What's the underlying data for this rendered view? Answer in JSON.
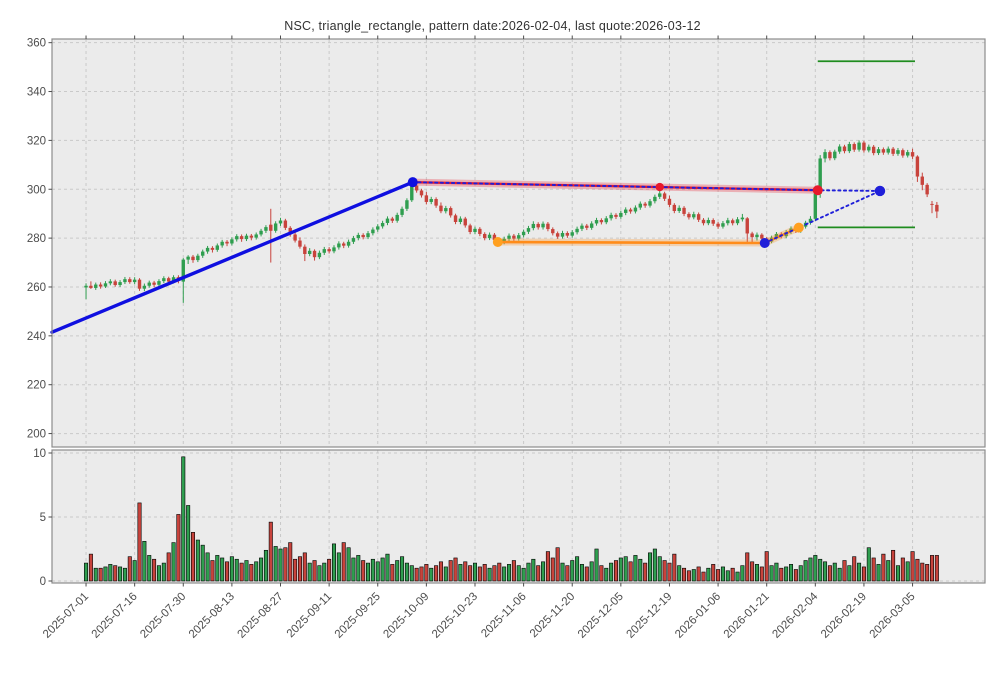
{
  "title": "NSC, triangle_rectangle, pattern date:2026-02-04, last quote:2026-03-12",
  "chart_data": {
    "type": "candlestick",
    "symbol": "NSC",
    "pattern": "triangle_rectangle",
    "pattern_date": "2026-02-04",
    "last_quote_date": "2026-03-12",
    "grid": true,
    "legend": "none",
    "x_tick_labels": [
      "2025-07-01",
      "2025-07-16",
      "2025-07-30",
      "2025-08-13",
      "2025-08-27",
      "2025-09-11",
      "2025-09-25",
      "2025-10-09",
      "2025-10-23",
      "2025-11-06",
      "2025-11-20",
      "2025-12-05",
      "2025-12-19",
      "2026-01-06",
      "2026-01-21",
      "2026-02-04",
      "2026-02-19",
      "2026-03-05"
    ],
    "x_tick_indices": [
      0,
      10,
      20,
      30,
      40,
      50,
      60,
      70,
      80,
      90,
      100,
      110,
      120,
      130,
      140,
      150,
      160,
      170
    ],
    "index_lim": [
      -7,
      184.9
    ],
    "price_axis": {
      "ticks": [
        200,
        220,
        240,
        260,
        280,
        300,
        320,
        340,
        360
      ],
      "lim": [
        194.5,
        361.5
      ]
    },
    "volume_axis": {
      "ticks": [
        0,
        5,
        10
      ],
      "lim": [
        0,
        10.4
      ]
    },
    "ohlc": [
      [
        259.8,
        261.5,
        255.0,
        260.5
      ],
      [
        260.5,
        262.3,
        259.2,
        259.6
      ],
      [
        259.6,
        261.8,
        258.8,
        261.0
      ],
      [
        261.0,
        261.9,
        259.3,
        260.2
      ],
      [
        260.2,
        262.4,
        259.6,
        261.5
      ],
      [
        261.5,
        263.2,
        260.7,
        262.3
      ],
      [
        262.3,
        263.0,
        260.1,
        260.8
      ],
      [
        260.8,
        262.8,
        260.0,
        262.0
      ],
      [
        262.0,
        264.1,
        261.2,
        263.2
      ],
      [
        263.2,
        264.0,
        261.3,
        262.0
      ],
      [
        262.0,
        264.0,
        261.1,
        263.0
      ],
      [
        263.0,
        263.6,
        258.4,
        259.3
      ],
      [
        259.3,
        261.4,
        258.3,
        260.5
      ],
      [
        260.5,
        262.6,
        259.7,
        261.8
      ],
      [
        261.8,
        262.5,
        259.9,
        260.9
      ],
      [
        260.9,
        263.2,
        260.1,
        262.4
      ],
      [
        262.4,
        264.4,
        261.6,
        263.6
      ],
      [
        263.6,
        264.2,
        261.3,
        262.2
      ],
      [
        262.2,
        264.8,
        261.4,
        264.0
      ],
      [
        264.0,
        264.8,
        261.5,
        262.5
      ],
      [
        262.2,
        271.8,
        253.5,
        271.2
      ],
      [
        271.2,
        273.0,
        269.4,
        272.4
      ],
      [
        272.4,
        273.1,
        269.9,
        271.0
      ],
      [
        271.0,
        273.6,
        270.2,
        272.8
      ],
      [
        272.8,
        275.3,
        271.9,
        274.5
      ],
      [
        274.5,
        276.8,
        273.6,
        276.0
      ],
      [
        276.0,
        276.7,
        274.1,
        275.2
      ],
      [
        275.2,
        277.8,
        274.4,
        277.0
      ],
      [
        277.0,
        279.3,
        276.1,
        278.5
      ],
      [
        278.5,
        279.2,
        276.7,
        277.8
      ],
      [
        277.8,
        280.3,
        277.0,
        279.5
      ],
      [
        279.5,
        281.6,
        278.6,
        280.8
      ],
      [
        280.8,
        281.5,
        278.5,
        279.6
      ],
      [
        279.6,
        281.8,
        278.8,
        281.0
      ],
      [
        281.0,
        281.7,
        279.1,
        280.2
      ],
      [
        280.2,
        282.3,
        279.4,
        281.5
      ],
      [
        281.5,
        283.8,
        280.7,
        283.0
      ],
      [
        283.0,
        285.3,
        282.1,
        284.5
      ],
      [
        285.5,
        292.0,
        270.0,
        283.0
      ],
      [
        283.0,
        286.9,
        282.2,
        286.0
      ],
      [
        286.0,
        288.3,
        285.0,
        287.2
      ],
      [
        287.2,
        287.9,
        283.3,
        284.2
      ],
      [
        284.2,
        284.9,
        280.6,
        281.5
      ],
      [
        281.5,
        282.8,
        278.2,
        279.0
      ],
      [
        279.0,
        280.3,
        275.7,
        276.5
      ],
      [
        276.5,
        277.4,
        270.6,
        273.5
      ],
      [
        273.5,
        275.9,
        272.6,
        274.8
      ],
      [
        274.8,
        275.4,
        270.8,
        272.2
      ],
      [
        272.2,
        274.9,
        271.4,
        274.0
      ],
      [
        274.0,
        276.4,
        273.1,
        275.5
      ],
      [
        275.5,
        276.3,
        273.7,
        274.6
      ],
      [
        274.6,
        277.1,
        273.8,
        276.2
      ],
      [
        276.2,
        278.7,
        275.3,
        277.8
      ],
      [
        277.8,
        278.5,
        275.9,
        276.9
      ],
      [
        276.9,
        279.4,
        276.1,
        278.5
      ],
      [
        278.5,
        280.9,
        277.6,
        280.0
      ],
      [
        280.0,
        282.2,
        279.1,
        281.3
      ],
      [
        281.3,
        282.0,
        279.5,
        280.4
      ],
      [
        280.4,
        282.9,
        279.6,
        282.0
      ],
      [
        282.0,
        284.4,
        281.1,
        283.5
      ],
      [
        283.5,
        285.7,
        282.6,
        284.8
      ],
      [
        284.8,
        287.1,
        283.9,
        286.2
      ],
      [
        286.2,
        288.9,
        285.3,
        288.0
      ],
      [
        288.0,
        288.7,
        286.2,
        287.1
      ],
      [
        287.1,
        290.4,
        286.3,
        289.5
      ],
      [
        289.5,
        292.9,
        288.6,
        292.0
      ],
      [
        292.0,
        296.3,
        291.1,
        295.5
      ],
      [
        295.5,
        303.0,
        294.8,
        301.5
      ],
      [
        301.5,
        302.8,
        298.6,
        299.5
      ],
      [
        299.5,
        300.2,
        296.6,
        297.5
      ],
      [
        297.5,
        298.9,
        293.8,
        294.8
      ],
      [
        294.8,
        296.9,
        293.9,
        296.0
      ],
      [
        296.0,
        296.7,
        292.4,
        293.3
      ],
      [
        293.3,
        294.6,
        290.2,
        291.0
      ],
      [
        291.0,
        293.2,
        290.1,
        292.3
      ],
      [
        292.3,
        293.0,
        288.4,
        289.3
      ],
      [
        289.3,
        290.0,
        285.7,
        286.6
      ],
      [
        286.6,
        288.9,
        285.7,
        288.0
      ],
      [
        288.0,
        288.7,
        284.3,
        285.2
      ],
      [
        285.2,
        285.9,
        281.6,
        282.5
      ],
      [
        282.5,
        284.7,
        281.6,
        283.8
      ],
      [
        283.8,
        284.5,
        280.8,
        281.7
      ],
      [
        281.7,
        282.4,
        279.1,
        280.0
      ],
      [
        280.0,
        282.3,
        279.2,
        281.4
      ],
      [
        281.4,
        282.1,
        278.3,
        279.2
      ],
      [
        279.2,
        279.9,
        277.3,
        278.3
      ],
      [
        278.3,
        280.6,
        277.5,
        279.7
      ],
      [
        279.7,
        281.9,
        278.8,
        281.0
      ],
      [
        281.0,
        281.7,
        278.9,
        279.8
      ],
      [
        279.8,
        282.1,
        279.0,
        281.2
      ],
      [
        281.2,
        283.5,
        280.3,
        282.6
      ],
      [
        282.6,
        285.0,
        281.7,
        284.1
      ],
      [
        284.1,
        286.9,
        283.2,
        285.8
      ],
      [
        285.8,
        286.5,
        283.5,
        284.4
      ],
      [
        284.4,
        286.8,
        283.5,
        285.9
      ],
      [
        285.9,
        286.6,
        282.8,
        283.7
      ],
      [
        283.7,
        284.4,
        281.1,
        282.0
      ],
      [
        282.0,
        282.7,
        279.7,
        280.6
      ],
      [
        280.6,
        283.0,
        279.8,
        282.1
      ],
      [
        282.1,
        282.8,
        280.1,
        281.0
      ],
      [
        281.0,
        283.3,
        280.2,
        282.4
      ],
      [
        282.4,
        284.7,
        281.5,
        283.8
      ],
      [
        283.8,
        286.0,
        282.9,
        285.1
      ],
      [
        285.1,
        285.8,
        283.3,
        284.2
      ],
      [
        284.2,
        286.9,
        283.4,
        286.0
      ],
      [
        286.0,
        288.3,
        285.1,
        287.4
      ],
      [
        287.4,
        288.1,
        285.6,
        286.5
      ],
      [
        286.5,
        289.0,
        285.7,
        288.1
      ],
      [
        288.1,
        290.4,
        287.2,
        289.5
      ],
      [
        289.5,
        290.2,
        287.8,
        288.7
      ],
      [
        288.7,
        291.2,
        287.9,
        290.3
      ],
      [
        290.3,
        292.6,
        289.4,
        291.7
      ],
      [
        291.7,
        292.4,
        290.0,
        290.9
      ],
      [
        290.9,
        293.4,
        290.1,
        292.5
      ],
      [
        292.5,
        295.0,
        291.6,
        294.1
      ],
      [
        294.1,
        294.8,
        292.4,
        293.3
      ],
      [
        293.3,
        296.0,
        292.5,
        295.1
      ],
      [
        295.1,
        297.8,
        294.2,
        296.9
      ],
      [
        296.9,
        300.8,
        296.0,
        298.3
      ],
      [
        298.3,
        299.0,
        295.2,
        296.1
      ],
      [
        296.1,
        297.4,
        292.7,
        293.6
      ],
      [
        293.6,
        294.3,
        290.2,
        291.1
      ],
      [
        291.1,
        293.4,
        290.3,
        292.4
      ],
      [
        292.4,
        293.1,
        289.0,
        289.9
      ],
      [
        289.9,
        290.6,
        287.6,
        288.5
      ],
      [
        288.5,
        290.8,
        287.7,
        289.8
      ],
      [
        289.8,
        290.5,
        286.6,
        287.5
      ],
      [
        287.5,
        288.2,
        285.2,
        286.1
      ],
      [
        286.1,
        288.4,
        285.3,
        287.4
      ],
      [
        287.4,
        288.1,
        285.0,
        285.9
      ],
      [
        285.9,
        286.6,
        283.8,
        284.7
      ],
      [
        284.7,
        287.0,
        283.9,
        286.1
      ],
      [
        286.1,
        288.3,
        285.2,
        287.3
      ],
      [
        287.3,
        288.0,
        285.2,
        286.1
      ],
      [
        286.1,
        288.6,
        285.3,
        287.7
      ],
      [
        287.7,
        289.9,
        286.8,
        288.4
      ],
      [
        288.1,
        288.6,
        277.8,
        281.9
      ],
      [
        281.9,
        282.6,
        277.6,
        280.4
      ],
      [
        280.4,
        282.3,
        279.0,
        281.4
      ],
      [
        281.4,
        282.0,
        278.9,
        279.8
      ],
      [
        279.8,
        280.5,
        277.4,
        278.6
      ],
      [
        278.6,
        281.0,
        277.9,
        280.2
      ],
      [
        280.2,
        282.5,
        279.4,
        281.7
      ],
      [
        281.7,
        282.4,
        279.9,
        280.8
      ],
      [
        280.8,
        283.3,
        280.0,
        282.5
      ],
      [
        282.5,
        284.8,
        281.7,
        283.9
      ],
      [
        283.9,
        284.6,
        282.1,
        283.0
      ],
      [
        283.0,
        285.5,
        282.2,
        284.7
      ],
      [
        284.7,
        287.1,
        283.9,
        286.3
      ],
      [
        286.3,
        289.0,
        285.5,
        287.9
      ],
      [
        287.9,
        299.5,
        287.0,
        298.2
      ],
      [
        298.2,
        314.0,
        296.5,
        312.6
      ],
      [
        312.6,
        316.4,
        311.0,
        315.2
      ],
      [
        315.2,
        315.9,
        311.8,
        312.7
      ],
      [
        312.7,
        316.2,
        311.9,
        315.4
      ],
      [
        315.4,
        318.4,
        314.5,
        317.5
      ],
      [
        317.5,
        318.2,
        314.7,
        315.6
      ],
      [
        315.6,
        319.4,
        314.8,
        318.5
      ],
      [
        318.5,
        319.2,
        315.3,
        316.2
      ],
      [
        316.2,
        320.0,
        315.4,
        319.1
      ],
      [
        319.1,
        319.8,
        315.0,
        315.9
      ],
      [
        315.9,
        318.3,
        315.1,
        317.4
      ],
      [
        317.4,
        318.1,
        313.9,
        314.8
      ],
      [
        314.8,
        317.3,
        314.0,
        316.4
      ],
      [
        316.4,
        317.1,
        314.1,
        315.0
      ],
      [
        315.0,
        317.5,
        314.2,
        316.6
      ],
      [
        316.6,
        317.3,
        313.6,
        314.5
      ],
      [
        314.5,
        316.9,
        313.7,
        316.0
      ],
      [
        316.0,
        316.7,
        312.9,
        313.8
      ],
      [
        313.8,
        316.1,
        313.0,
        315.2
      ],
      [
        315.2,
        316.6,
        312.4,
        313.4
      ],
      [
        313.4,
        313.9,
        303.0,
        305.2
      ],
      [
        305.2,
        306.8,
        299.6,
        301.8
      ],
      [
        301.8,
        302.5,
        296.8,
        297.9
      ],
      [
        294.0,
        295.2,
        290.2,
        293.6
      ],
      [
        293.6,
        294.8,
        288.2,
        290.9
      ]
    ],
    "volume": [
      1.4,
      2.1,
      1.0,
      1.0,
      1.1,
      1.3,
      1.2,
      1.1,
      1.0,
      1.9,
      1.6,
      6.1,
      3.1,
      2.0,
      1.7,
      1.2,
      1.4,
      2.2,
      3.0,
      5.2,
      9.7,
      5.9,
      3.8,
      3.2,
      2.8,
      2.2,
      1.6,
      2.0,
      1.8,
      1.5,
      1.9,
      1.7,
      1.4,
      1.6,
      1.3,
      1.5,
      1.8,
      2.4,
      4.6,
      2.7,
      2.5,
      2.6,
      3.0,
      1.7,
      1.9,
      2.2,
      1.4,
      1.6,
      1.2,
      1.4,
      1.7,
      2.9,
      2.2,
      3.0,
      2.6,
      1.8,
      2.0,
      1.6,
      1.4,
      1.7,
      1.5,
      1.8,
      2.1,
      1.3,
      1.6,
      1.9,
      1.4,
      1.2,
      1.0,
      1.1,
      1.3,
      1.0,
      1.2,
      1.5,
      1.1,
      1.6,
      1.8,
      1.3,
      1.5,
      1.2,
      1.4,
      1.1,
      1.3,
      1.0,
      1.2,
      1.4,
      1.1,
      1.3,
      1.6,
      1.2,
      1.0,
      1.4,
      1.7,
      1.2,
      1.5,
      2.3,
      1.8,
      2.6,
      1.4,
      1.2,
      1.6,
      1.9,
      1.3,
      1.1,
      1.5,
      2.5,
      1.2,
      1.0,
      1.4,
      1.6,
      1.8,
      1.9,
      1.5,
      2.0,
      1.7,
      1.4,
      2.2,
      2.5,
      1.9,
      1.6,
      1.4,
      2.1,
      1.2,
      1.0,
      0.8,
      0.9,
      1.1,
      0.7,
      1.0,
      1.3,
      0.9,
      1.1,
      0.8,
      1.0,
      0.7,
      1.2,
      2.2,
      1.5,
      1.3,
      1.1,
      2.3,
      1.2,
      1.4,
      1.0,
      1.1,
      1.3,
      0.9,
      1.2,
      1.6,
      1.8,
      2.0,
      1.7,
      1.5,
      1.2,
      1.4,
      1.0,
      1.6,
      1.2,
      1.9,
      1.4,
      1.1,
      2.6,
      1.8,
      1.3,
      2.1,
      1.6,
      2.4,
      1.2,
      1.8,
      1.5,
      2.3,
      1.7,
      1.4,
      1.3,
      2.0,
      2.0
    ],
    "overlays": {
      "blue_trendline": {
        "points": [
          [
            -7.0,
            241.5
          ],
          [
            67.2,
            302.9
          ]
        ],
        "color": "#0f0fe0",
        "width": 3.4
      },
      "upper_line": {
        "points": [
          [
            67.2,
            302.9
          ],
          [
            150.5,
            299.6
          ]
        ],
        "color": "#e8192c",
        "width": 2.4
      },
      "lower_line": {
        "points": [
          [
            84.7,
            278.4
          ],
          [
            139.6,
            278.0
          ]
        ],
        "color": "#ff8c1a",
        "width": 2.6
      },
      "lower_rising": {
        "points": [
          [
            139.6,
            278.0
          ],
          [
            146.6,
            284.3
          ]
        ],
        "color": "#ff8c1a",
        "width": 2.6
      },
      "dotted_upper": {
        "points": [
          [
            67.2,
            302.9
          ],
          [
            150.5,
            299.6
          ],
          [
            163.3,
            299.3
          ]
        ],
        "color": "#1f1fd9"
      },
      "dotted_lower": {
        "points": [
          [
            139.6,
            278.0
          ],
          [
            146.6,
            284.3
          ],
          [
            163.3,
            299.3
          ]
        ],
        "color": "#1f1fd9"
      },
      "levels": [
        {
          "price": 352.4,
          "from": 150.5,
          "to": 170.5,
          "color": "#1f8c1f"
        },
        {
          "price": 284.4,
          "from": 150.5,
          "to": 170.5,
          "color": "#1f8c1f"
        }
      ],
      "markers": [
        {
          "i": 67.2,
          "price": 302.9,
          "color": "#0f0fe0",
          "r": 5.0
        },
        {
          "i": 118.0,
          "price": 300.9,
          "color": "#e8192c",
          "r": 4.2
        },
        {
          "i": 150.5,
          "price": 299.6,
          "color": "#e8192c",
          "r": 5.0
        },
        {
          "i": 84.7,
          "price": 278.4,
          "color": "#ffa020",
          "r": 5.0
        },
        {
          "i": 139.6,
          "price": 278.0,
          "color": "#1f1fd9",
          "r": 5.0
        },
        {
          "i": 146.6,
          "price": 284.3,
          "color": "#ffa020",
          "r": 5.0
        },
        {
          "i": 163.3,
          "price": 299.3,
          "color": "#1f1fd9",
          "r": 5.2
        }
      ]
    },
    "colors": {
      "up": "#2f9e4f",
      "down": "#c8433c",
      "volume_edge": "#000000",
      "grid": "#c9c9c9",
      "plot_bg": "#ebebeb",
      "fig_bg": "#ffffff",
      "spine": "#8c8c8c",
      "tick_label": "#4d4d4d",
      "title": "#333333"
    }
  }
}
